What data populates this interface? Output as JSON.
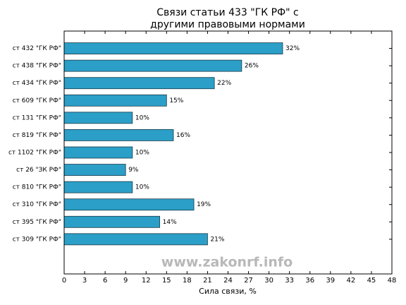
{
  "chart_data": {
    "type": "barh",
    "title": [
      "Связи статьи 433 \"ГК РФ\" с",
      "другими правовыми нормами"
    ],
    "xlabel": "Сила связи, %",
    "annotation": "www.zakonrf.info",
    "categories": [
      "ст 432 \"ГК РФ\"",
      "ст 438 \"ГК РФ\"",
      "ст 434 \"ГК РФ\"",
      "ст 609 \"ГК РФ\"",
      "ст 131 \"ГК РФ\"",
      "ст 819 \"ГК РФ\"",
      "ст 1102 \"ГК РФ\"",
      "ст 26 \"ЗК РФ\"",
      "ст 810 \"ГК РФ\"",
      "ст 310 \"ГК РФ\"",
      "ст 395 \"ГК РФ\"",
      "ст 309 \"ГК РФ\""
    ],
    "values": [
      32,
      26,
      22,
      15,
      10,
      16,
      10,
      9,
      10,
      19,
      14,
      21
    ],
    "value_labels": [
      "32%",
      "26%",
      "22%",
      "15%",
      "10%",
      "16%",
      "10%",
      "9%",
      "10%",
      "19%",
      "14%",
      "21%"
    ],
    "color": "#2b9fc7",
    "xlim": [
      0,
      48
    ],
    "xticks": [
      0,
      3,
      6,
      9,
      12,
      15,
      18,
      21,
      24,
      27,
      30,
      33,
      36,
      39,
      42,
      45,
      48
    ]
  }
}
